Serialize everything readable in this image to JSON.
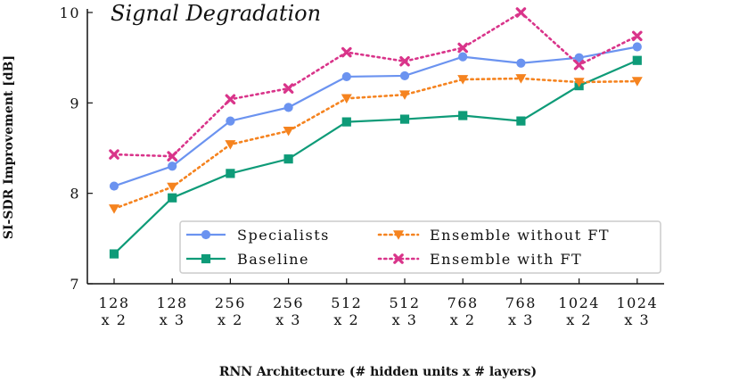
{
  "chart_data": {
    "type": "line",
    "title": "Signal Degradation",
    "xlabel": "RNN Architecture (# hidden units x # layers)",
    "ylabel": "SI-SDR Improvement [dB]",
    "categories": [
      [
        "128",
        "x 2"
      ],
      [
        "128",
        "x 3"
      ],
      [
        "256",
        "x 2"
      ],
      [
        "256",
        "x 3"
      ],
      [
        "512",
        "x 2"
      ],
      [
        "512",
        "x 3"
      ],
      [
        "768",
        "x 2"
      ],
      [
        "768",
        "x 3"
      ],
      [
        "1024",
        "x 2"
      ],
      [
        "1024",
        "x 3"
      ]
    ],
    "ylim": [
      7,
      10
    ],
    "yticks": [
      {
        "value": 7,
        "label": "7"
      },
      {
        "value": 8,
        "label": "8"
      },
      {
        "value": 9,
        "label": "9"
      },
      {
        "value": 10,
        "label": "10"
      }
    ],
    "legend_position": "lower-right",
    "series": [
      {
        "name": "Specialists",
        "color": "#6b93f0",
        "line": "solid",
        "marker": "circle",
        "values": [
          8.08,
          8.3,
          8.8,
          8.95,
          9.29,
          9.3,
          9.51,
          9.44,
          9.5,
          9.62
        ]
      },
      {
        "name": "Baseline",
        "color": "#0e9b78",
        "line": "solid",
        "marker": "square",
        "values": [
          7.33,
          7.95,
          8.22,
          8.38,
          8.79,
          8.82,
          8.86,
          8.8,
          9.19,
          9.47
        ]
      },
      {
        "name": "Ensemble without FT",
        "color": "#f5831f",
        "line": "dotted",
        "marker": "triangle-down",
        "values": [
          7.83,
          8.07,
          8.54,
          8.69,
          9.05,
          9.09,
          9.26,
          9.27,
          9.23,
          9.24
        ]
      },
      {
        "name": "Ensemble with FT",
        "color": "#d9348a",
        "line": "dotted",
        "marker": "x",
        "values": [
          8.43,
          8.41,
          9.04,
          9.16,
          9.56,
          9.46,
          9.61,
          10.0,
          9.42,
          9.74
        ]
      }
    ]
  }
}
